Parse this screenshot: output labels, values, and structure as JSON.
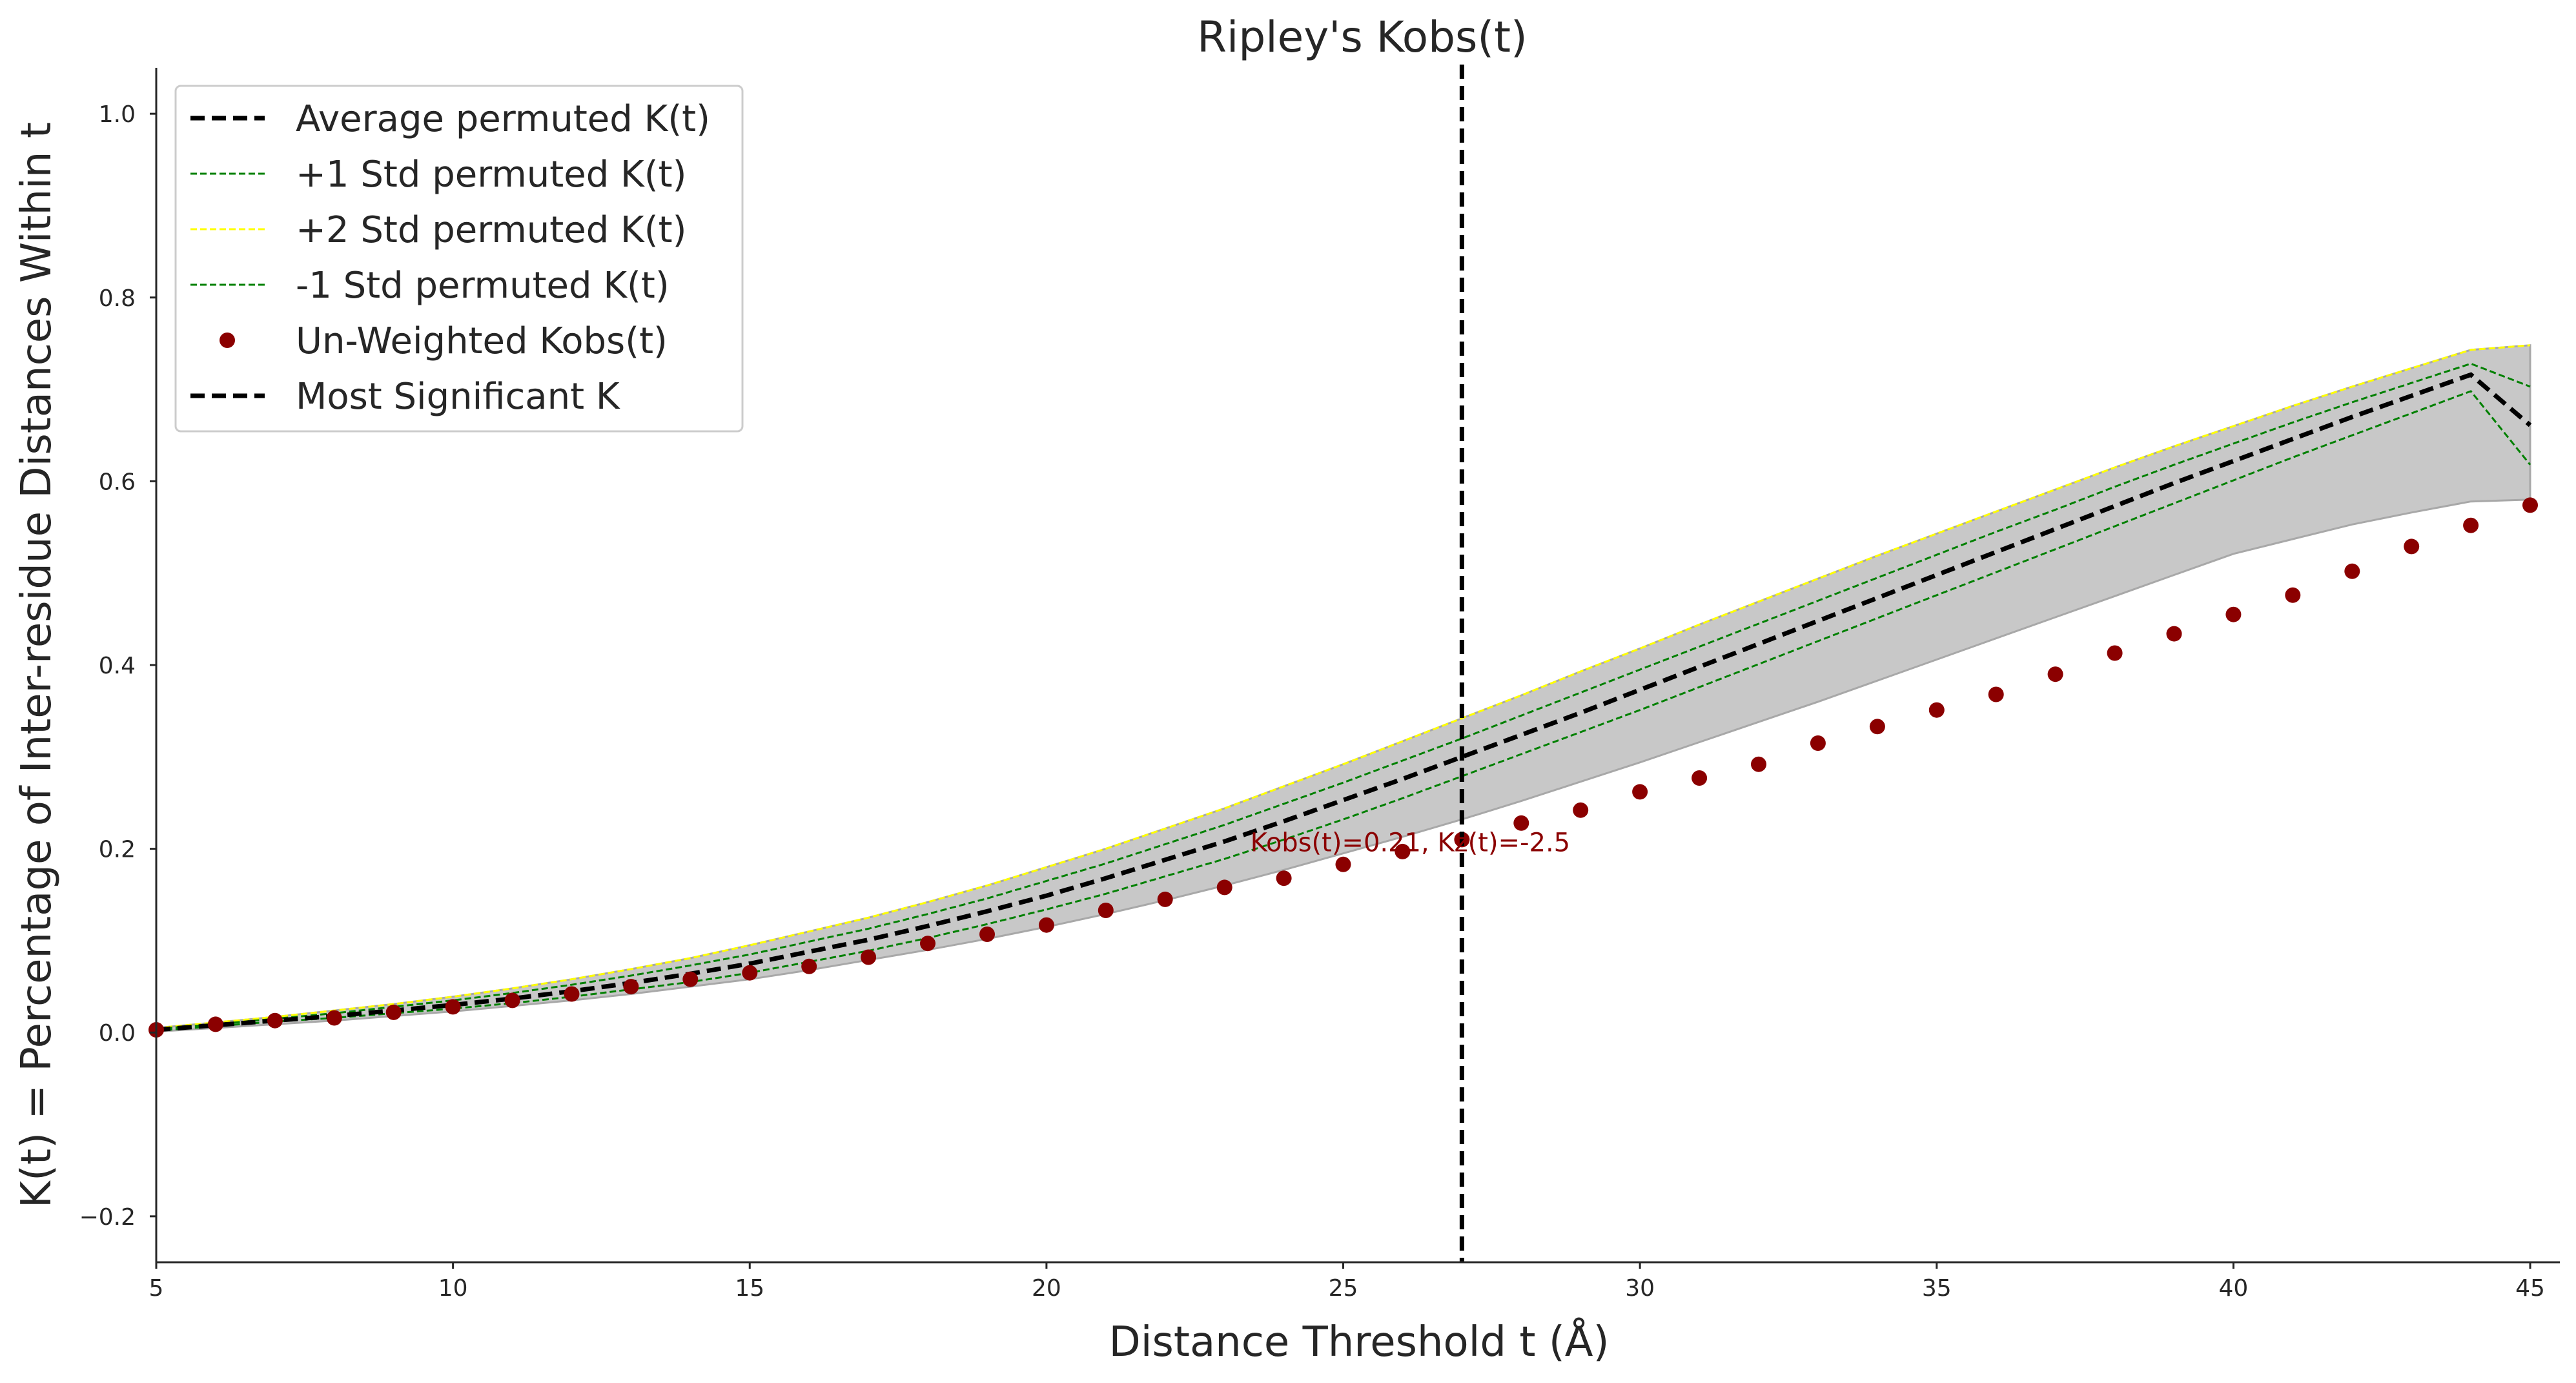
{
  "chart_data": {
    "type": "line",
    "title": "Ripley's Kobs(t)",
    "xlabel": "Distance Threshold t (Å)",
    "ylabel": "K(t) = Percentage of Inter-residue Distances Within t",
    "xlim": [
      5,
      45.5
    ],
    "ylim": [
      -0.25,
      1.05
    ],
    "xticks": [
      5,
      10,
      15,
      20,
      25,
      30,
      35,
      40,
      45
    ],
    "yticks": [
      -0.2,
      0.0,
      0.2,
      0.4,
      0.6,
      0.8,
      1.0
    ],
    "grid": false,
    "legend_position": "top-left",
    "x": [
      5,
      6,
      7,
      8,
      9,
      10,
      11,
      12,
      13,
      14,
      15,
      16,
      17,
      18,
      19,
      20,
      21,
      22,
      23,
      24,
      25,
      26,
      27,
      28,
      29,
      30,
      31,
      32,
      33,
      34,
      35,
      36,
      37,
      38,
      39,
      40,
      41,
      42,
      43,
      44,
      45
    ],
    "series": [
      {
        "name": "Average permuted K(t)",
        "style": "dashed",
        "color": "#000000",
        "values": [
          0.003,
          0.008,
          0.013,
          0.018,
          0.024,
          0.03,
          0.037,
          0.045,
          0.054,
          0.064,
          0.075,
          0.088,
          0.101,
          0.116,
          0.132,
          0.149,
          0.168,
          0.188,
          0.208,
          0.23,
          0.253,
          0.276,
          0.3,
          0.324,
          0.348,
          0.373,
          0.398,
          0.423,
          0.448,
          0.473,
          0.498,
          0.523,
          0.548,
          0.573,
          0.598,
          0.622,
          0.646,
          0.67,
          0.693,
          0.716,
          0.661
        ]
      },
      {
        "name": "+1 Std permuted K(t)",
        "style": "dashed",
        "color": "#008000",
        "values": [
          0.004,
          0.009,
          0.015,
          0.021,
          0.028,
          0.035,
          0.043,
          0.052,
          0.062,
          0.073,
          0.085,
          0.099,
          0.113,
          0.129,
          0.146,
          0.165,
          0.184,
          0.205,
          0.226,
          0.249,
          0.272,
          0.296,
          0.32,
          0.345,
          0.37,
          0.395,
          0.42,
          0.445,
          0.47,
          0.495,
          0.52,
          0.545,
          0.569,
          0.594,
          0.618,
          0.641,
          0.664,
          0.686,
          0.707,
          0.728,
          0.703
        ]
      },
      {
        "name": "+2 Std permuted K(t)",
        "style": "dashed",
        "color": "#ffff00",
        "values": [
          0.005,
          0.011,
          0.017,
          0.024,
          0.031,
          0.039,
          0.048,
          0.058,
          0.069,
          0.081,
          0.095,
          0.11,
          0.125,
          0.142,
          0.16,
          0.18,
          0.2,
          0.222,
          0.244,
          0.268,
          0.292,
          0.317,
          0.342,
          0.367,
          0.393,
          0.418,
          0.444,
          0.469,
          0.494,
          0.519,
          0.543,
          0.567,
          0.591,
          0.615,
          0.638,
          0.66,
          0.682,
          0.703,
          0.723,
          0.743,
          0.748
        ]
      },
      {
        "name": "-1 Std permuted K(t)",
        "style": "dashed",
        "color": "#008000",
        "values": [
          0.002,
          0.007,
          0.012,
          0.016,
          0.021,
          0.026,
          0.032,
          0.039,
          0.047,
          0.055,
          0.065,
          0.077,
          0.089,
          0.103,
          0.118,
          0.134,
          0.151,
          0.17,
          0.189,
          0.21,
          0.232,
          0.255,
          0.279,
          0.303,
          0.327,
          0.351,
          0.376,
          0.401,
          0.426,
          0.451,
          0.476,
          0.501,
          0.526,
          0.551,
          0.576,
          0.601,
          0.626,
          0.65,
          0.674,
          0.698,
          0.618
        ]
      },
      {
        "name": "Un-Weighted Kobs(t)",
        "style": "points",
        "color": "#8b0000",
        "values": [
          0.003,
          0.009,
          0.013,
          0.016,
          0.022,
          0.028,
          0.035,
          0.042,
          0.05,
          0.058,
          0.065,
          0.072,
          0.082,
          0.097,
          0.107,
          0.117,
          0.133,
          0.145,
          0.158,
          0.168,
          0.183,
          0.197,
          0.21,
          0.228,
          0.242,
          0.262,
          0.277,
          0.292,
          0.315,
          0.333,
          0.351,
          0.368,
          0.39,
          0.413,
          0.434,
          0.455,
          0.476,
          0.502,
          0.529,
          0.552,
          0.574
        ]
      },
      {
        "name": "Most Significant K",
        "style": "vline",
        "color": "#000000",
        "x_value": 27
      }
    ],
    "band": {
      "lower_values": [
        0.001,
        0.005,
        0.009,
        0.013,
        0.018,
        0.023,
        0.029,
        0.035,
        0.042,
        0.05,
        0.058,
        0.068,
        0.079,
        0.09,
        0.102,
        0.115,
        0.129,
        0.144,
        0.16,
        0.177,
        0.195,
        0.213,
        0.232,
        0.252,
        0.273,
        0.294,
        0.316,
        0.338,
        0.36,
        0.383,
        0.406,
        0.429,
        0.452,
        0.475,
        0.498,
        0.521,
        0.537,
        0.553,
        0.566,
        0.578,
        0.58
      ],
      "upper_values": [
        0.005,
        0.011,
        0.017,
        0.024,
        0.031,
        0.039,
        0.048,
        0.058,
        0.069,
        0.081,
        0.095,
        0.11,
        0.125,
        0.142,
        0.16,
        0.18,
        0.2,
        0.222,
        0.244,
        0.268,
        0.292,
        0.317,
        0.342,
        0.367,
        0.393,
        0.418,
        0.444,
        0.469,
        0.494,
        0.519,
        0.543,
        0.567,
        0.591,
        0.615,
        0.638,
        0.66,
        0.682,
        0.703,
        0.723,
        0.743,
        0.748
      ],
      "color": "#c8c8c8"
    },
    "annotation": {
      "text": "Kobs(t)=0.21, Kz(t)=-2.5",
      "x": 27,
      "y": 0.2,
      "color": "#8b0000"
    }
  }
}
